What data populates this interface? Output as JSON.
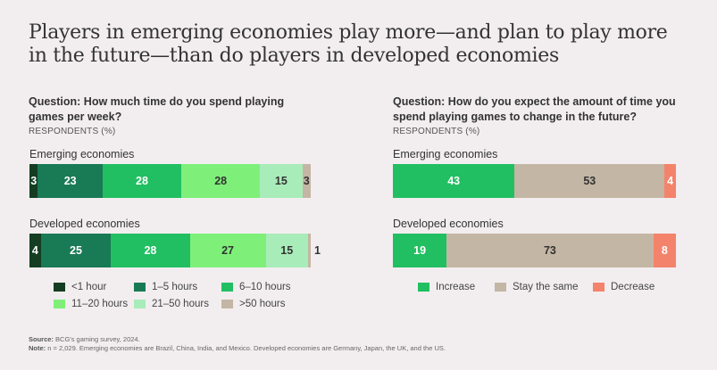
{
  "title": "Players in emerging economies play more—and plan to play more in the future—than do players in developed economies",
  "chart_data": [
    {
      "type": "bar",
      "orientation": "horizontal-stacked-100",
      "question": "Question: How much time do you spend playing games per week?",
      "unit_label": "RESPONDENTS (%)",
      "categories": [
        "Emerging economies",
        "Developed economies"
      ],
      "series": [
        {
          "name": "<1 hour",
          "color": "#143d22",
          "label_color": "#ffffff",
          "values": [
            3,
            4
          ]
        },
        {
          "name": "1–5 hours",
          "color": "#197a56",
          "label_color": "#ffffff",
          "values": [
            23,
            25
          ]
        },
        {
          "name": "6–10 hours",
          "color": "#21bf61",
          "label_color": "#ffffff",
          "values": [
            28,
            28
          ]
        },
        {
          "name": "11–20 hours",
          "color": "#7ef07a",
          "label_color": "#333333",
          "values": [
            28,
            27
          ]
        },
        {
          "name": "21–50 hours",
          "color": "#a8ecb9",
          "label_color": "#333333",
          "values": [
            15,
            15
          ]
        },
        {
          "name": ">50 hours",
          "color": "#c4b6a4",
          "label_color": "#333333",
          "values": [
            3,
            1
          ]
        }
      ],
      "legend_position": "bottom"
    },
    {
      "type": "bar",
      "orientation": "horizontal-stacked-100",
      "question": "Question: How do you expect the amount of time you spend playing games to change in the future?",
      "unit_label": "RESPONDENTS (%)",
      "categories": [
        "Emerging economies",
        "Developed economies"
      ],
      "series": [
        {
          "name": "Increase",
          "color": "#21bf61",
          "label_color": "#ffffff",
          "values": [
            43,
            19
          ]
        },
        {
          "name": "Stay the same",
          "color": "#c4b6a4",
          "label_color": "#333333",
          "values": [
            53,
            73
          ]
        },
        {
          "name": "Decrease",
          "color": "#f4836b",
          "label_color": "#ffffff",
          "values": [
            4,
            8
          ]
        }
      ],
      "legend_position": "bottom"
    }
  ],
  "footnote": {
    "source_label": "Source:",
    "source_text": " BCG's gaming survey, 2024.",
    "note_label": "Note:",
    "note_text": " n = 2,029. Emerging economies are Brazil, China, India, and Mexico. Developed economies are Germany, Japan, the UK, and the US."
  }
}
